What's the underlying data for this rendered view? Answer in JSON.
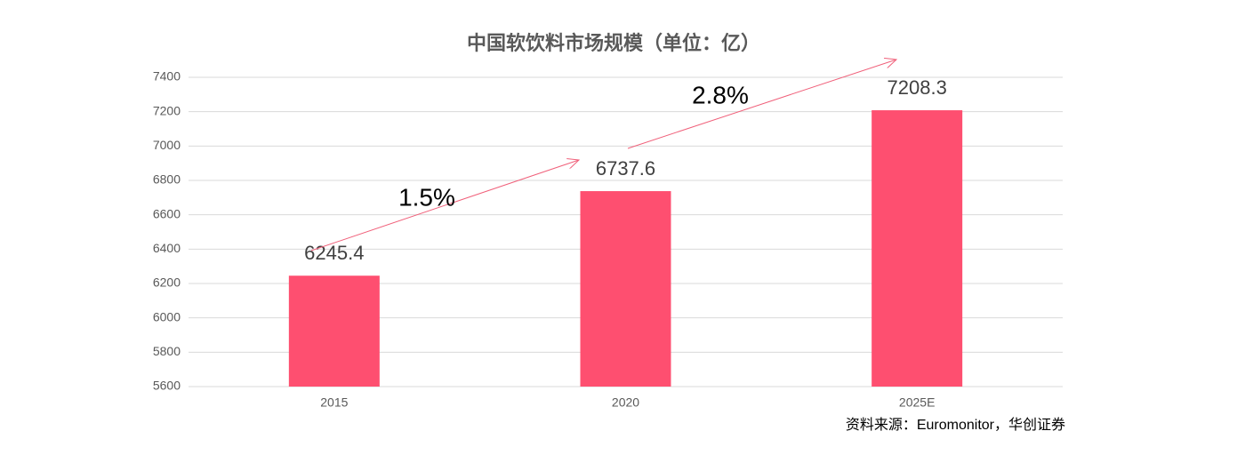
{
  "chart_data": {
    "type": "bar",
    "title": "中国软饮料市场规模（单位：亿）",
    "categories": [
      "2015",
      "2020",
      "2025E"
    ],
    "values": [
      6245.4,
      6737.6,
      7208.3
    ],
    "color": "#fe4f70",
    "ylim": [
      5600,
      7400
    ],
    "yticks": [
      5600,
      5800,
      6000,
      6200,
      6400,
      6600,
      6800,
      7000,
      7200,
      7400
    ],
    "grid": true,
    "annotations": [
      "1.5%",
      "2.8%"
    ],
    "source": "资料来源：Euromonitor，华创证券"
  }
}
